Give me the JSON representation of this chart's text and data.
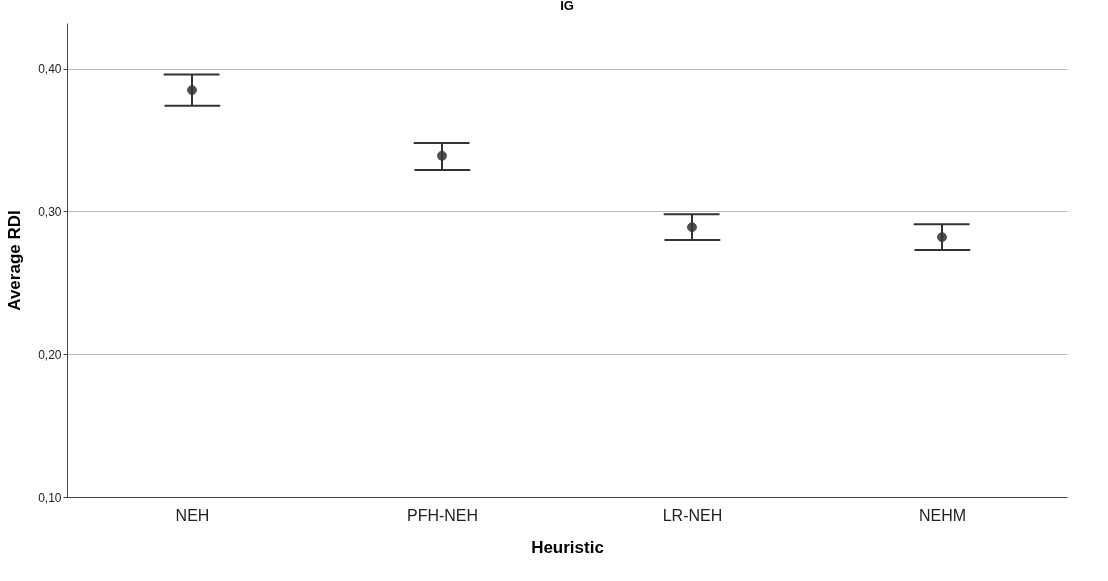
{
  "chart_data": {
    "type": "scatter",
    "title": "IG",
    "xlabel": "Heuristic",
    "ylabel": "Average RDI",
    "categories": [
      "NEH",
      "PFH-NEH",
      "LR-NEH",
      "NEHM"
    ],
    "values": [
      0.385,
      0.339,
      0.289,
      0.282
    ],
    "errors": [
      [
        0.374,
        0.396
      ],
      [
        0.329,
        0.348
      ],
      [
        0.28,
        0.298
      ],
      [
        0.273,
        0.291
      ]
    ],
    "color": "#333333",
    "marker": "circle",
    "ylim": [
      0.1,
      0.432
    ],
    "yticks": [
      {
        "value": 0.1,
        "label": "0,10"
      },
      {
        "value": 0.2,
        "label": "0,20"
      },
      {
        "value": 0.3,
        "label": "0,30"
      },
      {
        "value": 0.4,
        "label": "0,40"
      }
    ],
    "grid": "y"
  }
}
